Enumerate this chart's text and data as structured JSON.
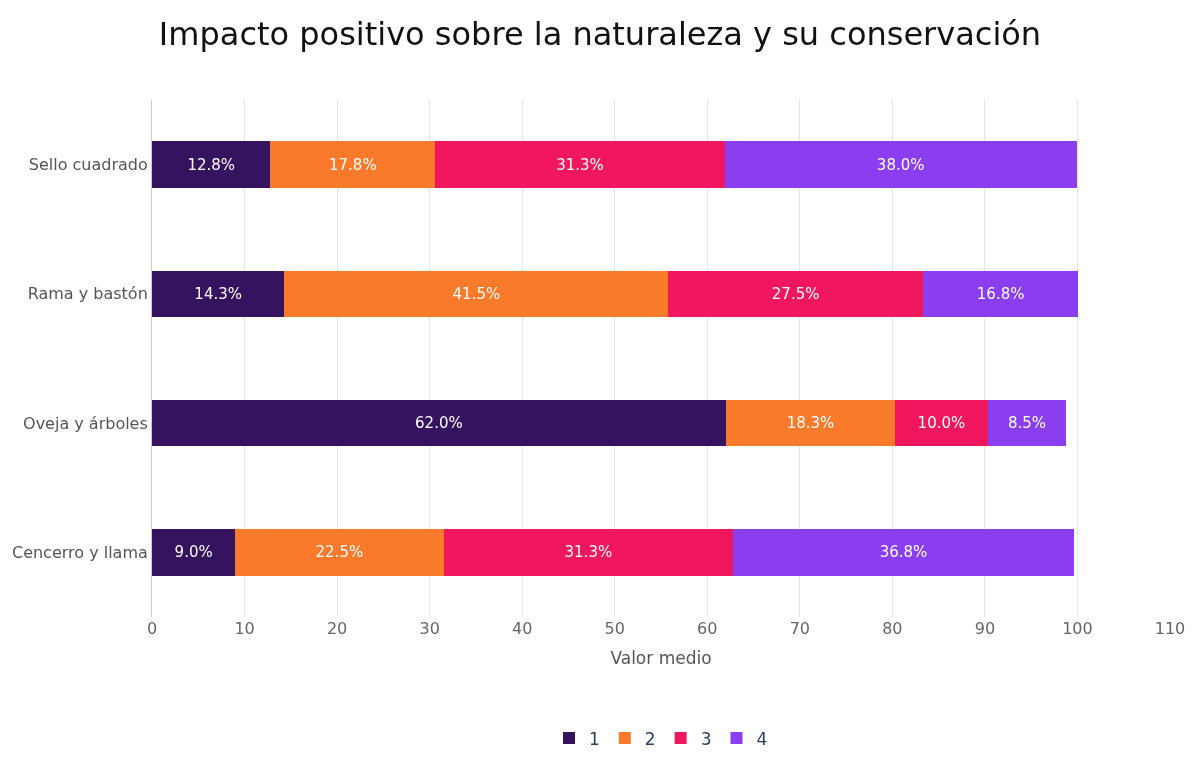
{
  "chart_data": {
    "type": "bar",
    "orientation": "horizontal",
    "stacked": true,
    "title": "Impacto positivo sobre la naturaleza y su conservación",
    "xlabel": "Valor medio",
    "categories": [
      "Sello cuadrado",
      "Rama y bastón",
      "Oveja y árboles",
      "Cencerro y llama"
    ],
    "series": [
      {
        "name": "1",
        "color": "#35135e",
        "values": [
          12.8,
          14.3,
          62.0,
          9.0
        ],
        "value_labels": [
          "12.8%",
          "14.3%",
          "62.0%",
          "9.0%"
        ]
      },
      {
        "name": "2",
        "color": "#f97a2a",
        "values": [
          17.8,
          41.5,
          18.3,
          22.5
        ],
        "value_labels": [
          "17.8%",
          "41.5%",
          "18.3%",
          "22.5%"
        ]
      },
      {
        "name": "3",
        "color": "#f0175f",
        "values": [
          31.3,
          27.5,
          10.0,
          31.3
        ],
        "value_labels": [
          "31.3%",
          "27.5%",
          "10.0%",
          "31.3%"
        ]
      },
      {
        "name": "4",
        "color": "#8a3ef0",
        "values": [
          38.0,
          16.8,
          8.5,
          36.8
        ],
        "value_labels": [
          "38.0%",
          "16.8%",
          "8.5%",
          "36.8%"
        ]
      }
    ],
    "xlim": [
      0,
      110
    ],
    "xticks": [
      0,
      10,
      20,
      30,
      40,
      50,
      60,
      70,
      80,
      90,
      100,
      110
    ],
    "grid": "x",
    "legend": "bottom"
  }
}
